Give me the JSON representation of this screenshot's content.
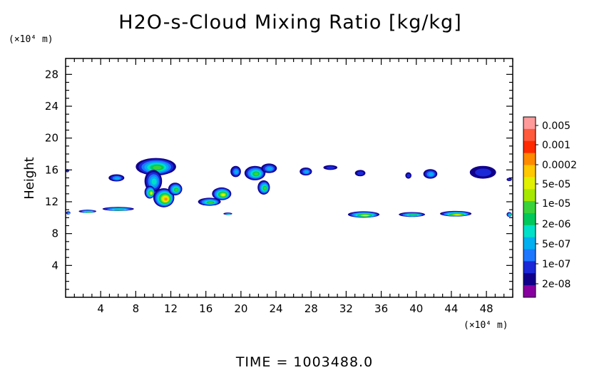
{
  "chart_data": {
    "type": "heatmap",
    "title": "H2O-s-Cloud Mixing Ratio [kg/kg]",
    "ylabel": "Height",
    "y_unit": "(×10⁴ m)",
    "x_unit": "(×10⁴ m)",
    "time_label": "TIME = 1003488.0",
    "xlim": [
      0,
      51
    ],
    "ylim": [
      0,
      30
    ],
    "x_ticks": [
      4,
      8,
      12,
      16,
      20,
      24,
      28,
      32,
      36,
      40,
      44,
      48
    ],
    "y_ticks": [
      4,
      8,
      12,
      16,
      20,
      24,
      28
    ],
    "colorbar": {
      "labels": [
        "0.005",
        "0.001",
        "0.0002",
        "5e-05",
        "1e-05",
        "2e-06",
        "5e-07",
        "1e-07",
        "2e-08"
      ],
      "colors": [
        "#ff9a9a",
        "#ff5a3c",
        "#ff2a00",
        "#ff8a00",
        "#ffc800",
        "#e0f000",
        "#a6e800",
        "#3ad23a",
        "#00c85a",
        "#00e0c8",
        "#00b0f0",
        "#1e78ff",
        "#1a28d8",
        "#10008a",
        "#8800a0"
      ]
    },
    "features": [
      {
        "name": "cloud-cell-0",
        "x": 0.2,
        "y": 15.9,
        "w": 0.4,
        "h": 0.4,
        "max_level": "1e-07"
      },
      {
        "name": "cloud-cell-5",
        "x": 5.8,
        "y": 15.0,
        "w": 1.8,
        "h": 0.9,
        "max_level": "5e-07"
      },
      {
        "name": "anvil-10",
        "x": 10.3,
        "y": 16.4,
        "w": 4.6,
        "h": 2.2,
        "max_level": "1e-05"
      },
      {
        "name": "updraft-10",
        "x": 10.0,
        "y": 14.6,
        "w": 2.0,
        "h": 2.8,
        "max_level": "2e-06"
      },
      {
        "name": "cell-9",
        "x": 9.6,
        "y": 13.2,
        "w": 1.2,
        "h": 1.6,
        "max_level": "5e-05"
      },
      {
        "name": "core-11",
        "x": 11.2,
        "y": 12.5,
        "w": 2.4,
        "h": 2.4,
        "max_level": "0.0002"
      },
      {
        "name": "core-12",
        "x": 12.5,
        "y": 13.6,
        "w": 1.6,
        "h": 1.6,
        "max_level": "1e-05"
      },
      {
        "name": "cell-18",
        "x": 17.8,
        "y": 13.0,
        "w": 2.2,
        "h": 1.6,
        "max_level": "5e-05"
      },
      {
        "name": "cell-16",
        "x": 16.4,
        "y": 12.0,
        "w": 2.6,
        "h": 1.0,
        "max_level": "1e-05"
      },
      {
        "name": "cell-22a",
        "x": 21.6,
        "y": 15.6,
        "w": 2.4,
        "h": 1.8,
        "max_level": "1e-05"
      },
      {
        "name": "cell-23",
        "x": 23.2,
        "y": 16.2,
        "w": 1.8,
        "h": 1.2,
        "max_level": "5e-07"
      },
      {
        "name": "cell-22b",
        "x": 22.6,
        "y": 13.8,
        "w": 1.4,
        "h": 1.8,
        "max_level": "1e-05"
      },
      {
        "name": "cell-19",
        "x": 19.4,
        "y": 15.8,
        "w": 1.2,
        "h": 1.4,
        "max_level": "5e-07"
      },
      {
        "name": "cell-27",
        "x": 27.4,
        "y": 15.8,
        "w": 1.4,
        "h": 1.0,
        "max_level": "5e-07"
      },
      {
        "name": "cell-30",
        "x": 30.2,
        "y": 16.3,
        "w": 1.6,
        "h": 0.6,
        "max_level": "1e-07"
      },
      {
        "name": "cell-34",
        "x": 33.6,
        "y": 15.6,
        "w": 1.2,
        "h": 0.8,
        "max_level": "1e-07"
      },
      {
        "name": "cell-39",
        "x": 39.1,
        "y": 15.3,
        "w": 0.7,
        "h": 0.8,
        "max_level": "1e-07"
      },
      {
        "name": "cell-41",
        "x": 41.6,
        "y": 15.5,
        "w": 1.6,
        "h": 1.2,
        "max_level": "5e-07"
      },
      {
        "name": "cell-47",
        "x": 47.6,
        "y": 15.7,
        "w": 3.0,
        "h": 1.6,
        "max_level": "1e-07"
      },
      {
        "name": "cell-50",
        "x": 50.6,
        "y": 14.8,
        "w": 0.6,
        "h": 0.4,
        "max_level": "1e-07"
      },
      {
        "name": "low-layer-3",
        "x": 2.5,
        "y": 10.8,
        "w": 2.0,
        "h": 0.4,
        "max_level": "1e-05"
      },
      {
        "name": "low-layer-6",
        "x": 6.0,
        "y": 11.1,
        "w": 3.6,
        "h": 0.5,
        "max_level": "1e-05"
      },
      {
        "name": "low-layer-18",
        "x": 18.5,
        "y": 10.5,
        "w": 1.0,
        "h": 0.3,
        "max_level": "2e-06"
      },
      {
        "name": "low-layer-34",
        "x": 34.0,
        "y": 10.4,
        "w": 3.6,
        "h": 0.8,
        "max_level": "5e-05"
      },
      {
        "name": "low-layer-40",
        "x": 39.5,
        "y": 10.4,
        "w": 3.0,
        "h": 0.6,
        "max_level": "1e-05"
      },
      {
        "name": "low-layer-44",
        "x": 44.5,
        "y": 10.5,
        "w": 3.6,
        "h": 0.7,
        "max_level": "5e-05"
      },
      {
        "name": "low-layer-50",
        "x": 50.6,
        "y": 10.4,
        "w": 0.6,
        "h": 0.6,
        "max_level": "1e-05"
      },
      {
        "name": "low-layer-0",
        "x": 0.3,
        "y": 10.6,
        "w": 0.5,
        "h": 0.4,
        "max_level": "2e-06"
      }
    ]
  }
}
